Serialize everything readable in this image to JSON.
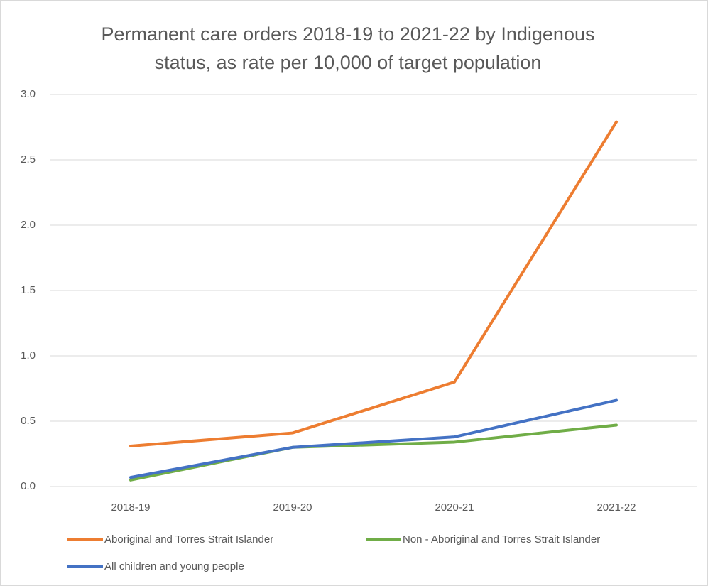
{
  "chart_data": {
    "type": "line",
    "title": "Permanent care orders 2018-19 to 2021-22 by Indigenous status, as rate per 10,000 of target population",
    "categories": [
      "2018-19",
      "2019-20",
      "2020-21",
      "2021-22"
    ],
    "series": [
      {
        "name": "Aboriginal and Torres Strait Islander",
        "color": "#ED7D31",
        "values": [
          0.31,
          0.41,
          0.8,
          2.79
        ]
      },
      {
        "name": "Non - Aboriginal and Torres Strait Islander",
        "color": "#70AD47",
        "values": [
          0.05,
          0.3,
          0.34,
          0.47
        ]
      },
      {
        "name": "All children and young people",
        "color": "#4472C4",
        "values": [
          0.07,
          0.3,
          0.38,
          0.66
        ]
      }
    ],
    "ylim": [
      0,
      3
    ],
    "yticks": [
      {
        "value": 0,
        "label": "0.0"
      },
      {
        "value": 0.5,
        "label": "0.5"
      },
      {
        "value": 1,
        "label": "1.0"
      },
      {
        "value": 1.5,
        "label": "1.5"
      },
      {
        "value": 2,
        "label": "2.0"
      },
      {
        "value": 2.5,
        "label": "2.5"
      },
      {
        "value": 3,
        "label": "3.0"
      }
    ],
    "grid": true,
    "legend": "bottom"
  }
}
